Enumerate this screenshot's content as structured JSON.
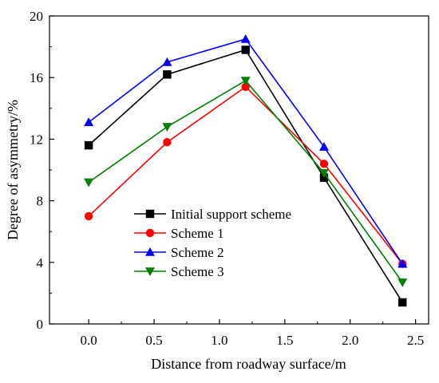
{
  "chart_data": {
    "type": "line",
    "title": "",
    "xlabel": "Distance from roadway surface/m",
    "ylabel": "Degree of asymmetry/%",
    "xlim": [
      -0.3,
      2.6
    ],
    "ylim": [
      0,
      20
    ],
    "xticks": [
      0.0,
      0.5,
      1.0,
      1.5,
      2.0,
      2.5
    ],
    "xtick_labels": [
      "0.0",
      "0.5",
      "1.0",
      "1.5",
      "2.0",
      "2.5"
    ],
    "yticks": [
      0,
      4,
      8,
      12,
      16,
      20
    ],
    "ytick_labels": [
      "0",
      "4",
      "8",
      "12",
      "16",
      "20"
    ],
    "grid": false,
    "legend_position": "lower-left",
    "x": [
      0,
      0.6,
      1.2,
      1.8,
      2.4
    ],
    "series": [
      {
        "name": "Initial support scheme",
        "color": "#000000",
        "marker": "square",
        "values": [
          11.6,
          16.2,
          17.8,
          9.5,
          1.4
        ]
      },
      {
        "name": "Scheme 1",
        "color": "#ff0000",
        "marker": "circle",
        "values": [
          7.0,
          11.8,
          15.4,
          10.4,
          3.9
        ]
      },
      {
        "name": "Scheme 2",
        "color": "#0000ff",
        "marker": "triangle-up",
        "values": [
          13.1,
          17.0,
          18.5,
          11.5,
          3.9
        ]
      },
      {
        "name": "Scheme 3",
        "color": "#008000",
        "marker": "triangle-down",
        "values": [
          9.2,
          12.8,
          15.8,
          9.8,
          2.7
        ]
      }
    ]
  }
}
